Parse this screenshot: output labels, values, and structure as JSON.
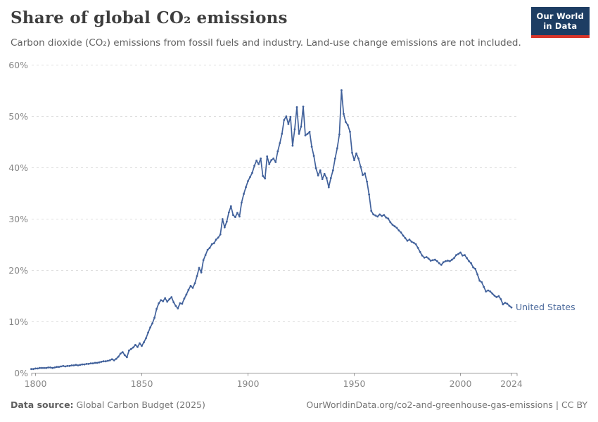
{
  "header": {
    "title": "Share of global CO₂ emissions",
    "subtitle": "Carbon dioxide (CO₂) emissions from fossil fuels and industry. Land-use change emissions are not included.",
    "logo": {
      "line1": "Our World",
      "line2": "in Data"
    }
  },
  "chart_data": {
    "type": "line",
    "title": "Share of global CO₂ emissions",
    "series": [
      {
        "name": "United States",
        "color": "#41619b",
        "x_start": 1798,
        "x_end": 2024,
        "x_step": 1,
        "values": [
          0.8,
          0.8,
          0.9,
          0.9,
          1.0,
          1.0,
          1.0,
          1.0,
          1.1,
          1.1,
          1.0,
          1.1,
          1.2,
          1.2,
          1.3,
          1.4,
          1.3,
          1.4,
          1.4,
          1.5,
          1.5,
          1.6,
          1.5,
          1.6,
          1.7,
          1.7,
          1.8,
          1.8,
          1.9,
          1.9,
          2.0,
          2.0,
          2.1,
          2.2,
          2.3,
          2.3,
          2.4,
          2.5,
          2.7,
          2.5,
          2.8,
          3.2,
          3.8,
          4.1,
          3.5,
          3.1,
          4.4,
          4.7,
          5.0,
          5.5,
          5.1,
          5.8,
          5.3,
          6.0,
          6.8,
          7.9,
          8.9,
          9.7,
          10.8,
          12.5,
          13.6,
          14.2,
          14.0,
          14.6,
          13.9,
          14.4,
          14.8,
          13.8,
          13.1,
          12.6,
          13.6,
          13.5,
          14.5,
          15.3,
          16.2,
          17.0,
          16.6,
          17.5,
          18.9,
          20.5,
          19.6,
          22.0,
          23.0,
          24.0,
          24.4,
          25.1,
          25.3,
          26.0,
          26.4,
          27.0,
          30.0,
          28.4,
          29.5,
          31.3,
          32.5,
          30.8,
          30.4,
          31.2,
          30.5,
          33.2,
          34.9,
          36.2,
          37.4,
          38.2,
          39.0,
          40.4,
          41.4,
          40.7,
          41.8,
          38.4,
          37.9,
          42.2,
          40.7,
          41.5,
          41.8,
          41.1,
          43.2,
          44.8,
          46.6,
          49.3,
          50.0,
          48.5,
          49.9,
          44.3,
          47.5,
          51.8,
          46.6,
          48.0,
          51.9,
          46.3,
          46.6,
          47.0,
          44.1,
          42.3,
          39.9,
          38.5,
          39.5,
          37.8,
          38.8,
          38.0,
          36.2,
          38.0,
          39.5,
          41.8,
          43.8,
          46.5,
          55.1,
          50.5,
          48.9,
          48.3,
          47.0,
          42.9,
          41.5,
          42.8,
          41.8,
          40.2,
          38.6,
          38.9,
          37.3,
          34.8,
          31.6,
          30.9,
          30.7,
          30.5,
          30.9,
          30.6,
          30.8,
          30.3,
          30.1,
          29.4,
          28.9,
          28.6,
          28.3,
          27.8,
          27.4,
          26.8,
          26.3,
          25.8,
          26.0,
          25.6,
          25.4,
          25.1,
          24.4,
          23.6,
          22.9,
          22.5,
          22.6,
          22.3,
          21.9,
          22.0,
          22.1,
          21.8,
          21.4,
          21.1,
          21.6,
          21.8,
          21.9,
          21.8,
          22.1,
          22.4,
          23.0,
          23.2,
          23.5,
          22.9,
          23.0,
          22.4,
          21.8,
          21.4,
          20.6,
          20.3,
          19.2,
          18.0,
          17.7,
          16.8,
          15.9,
          16.1,
          15.9,
          15.5,
          15.1,
          14.8,
          15.0,
          14.4,
          13.4,
          13.7,
          13.5,
          13.1,
          12.8
        ]
      }
    ],
    "end_label": "United States",
    "x_ticks": [
      1800,
      1850,
      1900,
      1950,
      2000,
      2024
    ],
    "y_ticks": [
      0,
      10,
      20,
      30,
      40,
      50,
      60
    ],
    "y_tick_suffix": "%",
    "xlim": [
      1796,
      2027
    ],
    "ylim": [
      0,
      60
    ],
    "grid": "horizontal-dashed",
    "legend_position": "end-of-line"
  },
  "footer": {
    "source_label": "Data source:",
    "source_value": " Global Carbon Budget (2025)",
    "link": "OurWorldinData.org/co2-and-greenhouse-gas-emissions | CC BY"
  },
  "colors": {
    "line": "#41619b",
    "series_label": "#4c6a9c",
    "grid": "#dedede",
    "axis": "#999999",
    "tick_text": "#878787",
    "logo_bg": "#1d3d63",
    "logo_red": "#d8352a"
  }
}
